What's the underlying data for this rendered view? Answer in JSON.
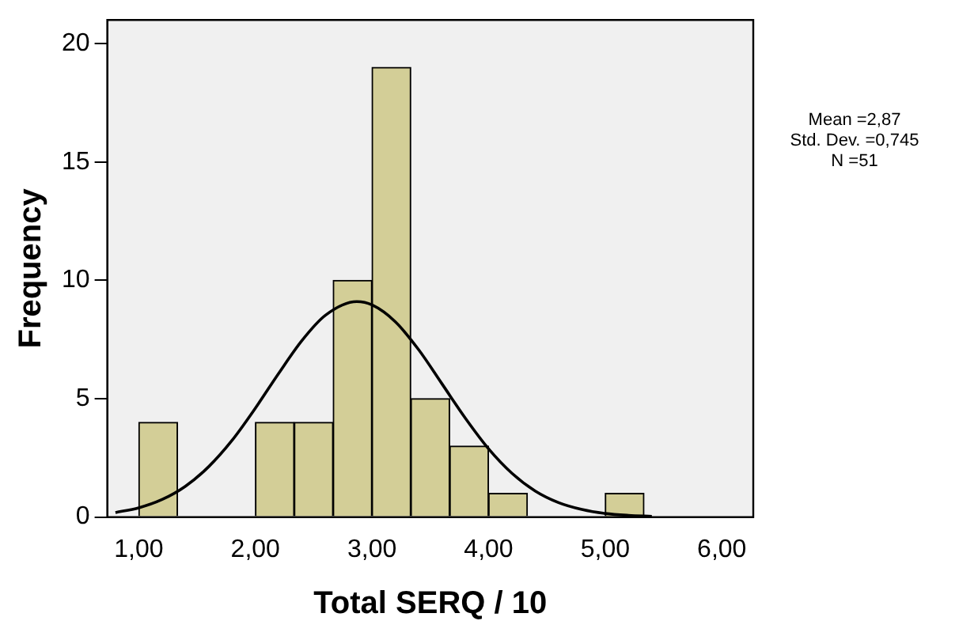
{
  "chart_data": {
    "type": "histogram",
    "xlabel": "Total SERQ / 10",
    "ylabel": "Frequency",
    "bins": [
      1,
      1.333,
      1.667,
      2,
      2.333,
      2.667,
      3,
      3.333,
      3.667,
      4,
      4.333,
      4.667,
      5,
      5.333
    ],
    "values": [
      4,
      0,
      0,
      4,
      4,
      10,
      19,
      5,
      3,
      1,
      0,
      0,
      1
    ],
    "color": "#d3ce97",
    "series": [
      {
        "type": "line",
        "color": "#000000",
        "x": [
          0.8,
          1,
          1.2,
          1.4,
          1.6,
          1.8,
          2,
          2.2,
          2.4,
          2.6,
          2.87,
          3,
          3.2,
          3.4,
          3.6,
          3.8,
          4,
          4.2,
          4.4,
          4.6,
          4.8,
          5,
          5.2,
          5.4
        ],
        "values": [
          0.19,
          0.39,
          0.74,
          1.3,
          2.13,
          3.24,
          4.6,
          6.07,
          7.46,
          8.52,
          9.1,
          8.96,
          8.25,
          7.07,
          5.63,
          4.18,
          2.88,
          1.85,
          1.1,
          0.61,
          0.32,
          0.15,
          0.07,
          0.03
        ]
      }
    ],
    "xlim": [
      0.73,
      6.27
    ],
    "xticks": [
      {
        "value": 1,
        "label": "1,00"
      },
      {
        "value": 2,
        "label": "2,00"
      },
      {
        "value": 3,
        "label": "3,00"
      },
      {
        "value": 4,
        "label": "4,00"
      },
      {
        "value": 5,
        "label": "5,00"
      },
      {
        "value": 6,
        "label": "6,00"
      }
    ],
    "ylim": [
      0,
      21
    ],
    "yticks": [
      0,
      5,
      10,
      15,
      20
    ],
    "grid": false,
    "legend": false,
    "annotations": [
      "Mean =2,87",
      "Std. Dev. =0,745",
      "N =51"
    ]
  }
}
